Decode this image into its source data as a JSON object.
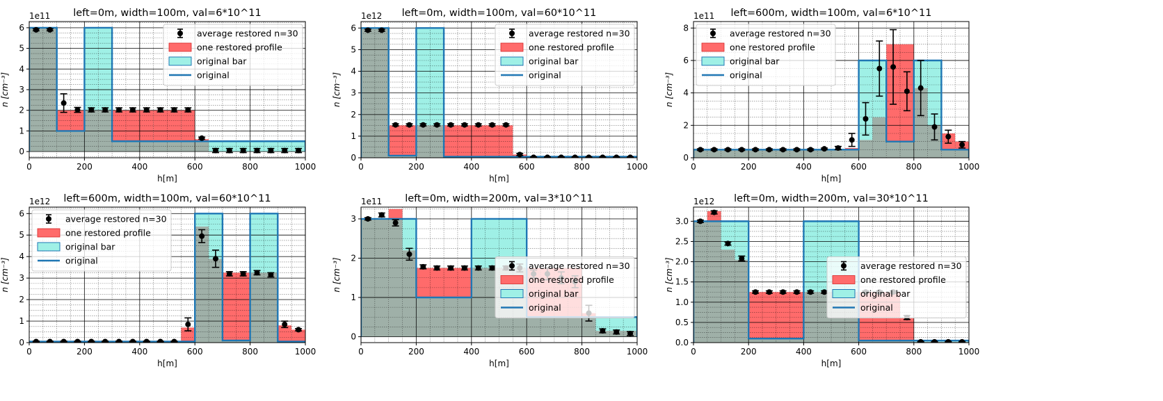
{
  "x_axis_label": "h[m]",
  "y_axis_label": "n [cm⁻³]",
  "legend_labels": [
    "average restored n=30",
    "one restored profile",
    "original bar",
    "original"
  ],
  "colors": {
    "restored": "#ff6b6b",
    "original_bar": "#9ff0e6",
    "original_line": "#1f77b4",
    "error_points": "#000000",
    "overlap": "#9fb0a8"
  },
  "chart_data": [
    {
      "type": "bar",
      "title": "left=0m, width=100m, val=6*10^11",
      "scale_label": "1e11",
      "xlabel": "h[m]",
      "ylabel": "n [cm⁻³]",
      "xlim": [
        0,
        1000
      ],
      "ylim": [
        -0.3,
        6.3
      ],
      "xticks": [
        0,
        200,
        400,
        600,
        800,
        1000
      ],
      "yticks": [
        0,
        1,
        2,
        3,
        4,
        5,
        6
      ],
      "legend_position": "upper-right",
      "original_edges": [
        0,
        100,
        200,
        300,
        1000
      ],
      "original_values": [
        6,
        1,
        6,
        0.5
      ],
      "restored_edges": [
        0,
        100,
        150,
        200,
        250,
        300,
        350,
        400,
        450,
        500,
        550,
        600,
        650,
        1000
      ],
      "restored_values": [
        6,
        2,
        2,
        2,
        2,
        2,
        2,
        2,
        2,
        2,
        2,
        0.6,
        0
      ],
      "points_x": [
        25,
        75,
        125,
        175,
        225,
        275,
        325,
        375,
        425,
        475,
        525,
        575,
        625,
        675,
        725,
        775,
        825,
        875,
        925,
        975
      ],
      "points_y": [
        5.9,
        5.9,
        2.35,
        2.02,
        2.02,
        2.02,
        2.02,
        2.02,
        2.02,
        2.02,
        2.02,
        2.02,
        0.65,
        0.05,
        0.05,
        0.05,
        0.05,
        0.05,
        0.05,
        0.05
      ],
      "points_err": [
        0.05,
        0.05,
        0.45,
        0.12,
        0.1,
        0.1,
        0.1,
        0.1,
        0.1,
        0.1,
        0.1,
        0.1,
        0.05,
        0.1,
        0.1,
        0.1,
        0.1,
        0.1,
        0.1,
        0.1
      ]
    },
    {
      "type": "bar",
      "title": "left=0m, width=100m, val=60*10^11",
      "scale_label": "1e12",
      "xlabel": "h[m]",
      "ylabel": "n [cm⁻³]",
      "xlim": [
        0,
        1000
      ],
      "ylim": [
        0,
        6.3
      ],
      "xticks": [
        0,
        200,
        400,
        600,
        800,
        1000
      ],
      "yticks": [
        0,
        1,
        2,
        3,
        4,
        5,
        6
      ],
      "legend_position": "upper-right",
      "original_edges": [
        0,
        100,
        200,
        300,
        1000
      ],
      "original_values": [
        6,
        0.1,
        6,
        0.05
      ],
      "restored_edges": [
        0,
        100,
        550,
        600,
        1000
      ],
      "restored_values": [
        6,
        1.5,
        0.15,
        0.05
      ],
      "points_x": [
        25,
        75,
        125,
        175,
        225,
        275,
        325,
        375,
        425,
        475,
        525,
        575,
        625,
        675,
        725,
        775,
        825,
        875,
        925,
        975
      ],
      "points_y": [
        5.9,
        5.9,
        1.52,
        1.52,
        1.52,
        1.52,
        1.52,
        1.52,
        1.52,
        1.52,
        1.52,
        0.15,
        0.02,
        0.02,
        0.02,
        0.02,
        0.02,
        0.02,
        0.02,
        0.02
      ],
      "points_err": [
        0.05,
        0.05,
        0.05,
        0.05,
        0.05,
        0.05,
        0.05,
        0.05,
        0.05,
        0.05,
        0.05,
        0.05,
        0.02,
        0.02,
        0.02,
        0.02,
        0.02,
        0.02,
        0.02,
        0.02
      ]
    },
    {
      "type": "bar",
      "title": "left=600m, width=100m, val=6*10^11",
      "scale_label": "1e11",
      "xlabel": "h[m]",
      "ylabel": "n [cm⁻³]",
      "xlim": [
        0,
        1000
      ],
      "ylim": [
        0,
        8.4
      ],
      "xticks": [
        0,
        200,
        400,
        600,
        800,
        1000
      ],
      "yticks": [
        0,
        2,
        4,
        6,
        8
      ],
      "legend_position": "upper-left",
      "original_edges": [
        0,
        600,
        700,
        800,
        900,
        1000
      ],
      "original_values": [
        0.5,
        6,
        1,
        6,
        0.5
      ],
      "restored_edges": [
        0,
        550,
        600,
        650,
        700,
        800,
        850,
        900,
        950,
        1000
      ],
      "restored_values": [
        0.5,
        0.6,
        1.1,
        2.5,
        7,
        4.3,
        2,
        1.5,
        1
      ],
      "points_x": [
        25,
        75,
        125,
        175,
        225,
        275,
        325,
        375,
        425,
        475,
        525,
        575,
        625,
        675,
        725,
        775,
        825,
        875,
        925,
        975
      ],
      "points_y": [
        0.5,
        0.5,
        0.5,
        0.5,
        0.5,
        0.5,
        0.5,
        0.5,
        0.5,
        0.55,
        0.6,
        1.1,
        2.4,
        5.5,
        5.6,
        4.1,
        4.3,
        1.9,
        1.3,
        0.8
      ],
      "points_err": [
        0.05,
        0.05,
        0.05,
        0.05,
        0.05,
        0.05,
        0.05,
        0.05,
        0.05,
        0.05,
        0.1,
        0.4,
        1.0,
        1.7,
        2.3,
        1.2,
        1.7,
        0.8,
        0.4,
        0.2
      ]
    },
    {
      "type": "bar",
      "title": "left=600m, width=100m, val=60*10^11",
      "scale_label": "1e12",
      "xlabel": "h[m]",
      "ylabel": "n [cm⁻³]",
      "xlim": [
        0,
        1000
      ],
      "ylim": [
        0,
        6.3
      ],
      "xticks": [
        0,
        200,
        400,
        600,
        800,
        1000
      ],
      "yticks": [
        0,
        1,
        2,
        3,
        4,
        5,
        6
      ],
      "legend_position": "upper-left",
      "original_edges": [
        0,
        600,
        700,
        800,
        900,
        1000
      ],
      "original_values": [
        0.05,
        6,
        0.1,
        6,
        0.05
      ],
      "restored_edges": [
        0,
        550,
        600,
        650,
        700,
        800,
        900,
        950,
        1000
      ],
      "restored_values": [
        0.05,
        0.7,
        5.4,
        3.9,
        3.25,
        3.25,
        0.8,
        0.6
      ],
      "points_x": [
        25,
        75,
        125,
        175,
        225,
        275,
        325,
        375,
        425,
        475,
        525,
        575,
        625,
        675,
        725,
        775,
        825,
        875,
        925,
        975
      ],
      "points_y": [
        0.05,
        0.05,
        0.05,
        0.05,
        0.05,
        0.05,
        0.05,
        0.05,
        0.05,
        0.05,
        0.05,
        0.85,
        4.95,
        3.9,
        3.2,
        3.2,
        3.25,
        3.15,
        0.85,
        0.6
      ],
      "points_err": [
        0.02,
        0.02,
        0.02,
        0.02,
        0.02,
        0.02,
        0.02,
        0.02,
        0.02,
        0.02,
        0.02,
        0.3,
        0.3,
        0.4,
        0.1,
        0.1,
        0.1,
        0.1,
        0.15,
        0.05
      ]
    },
    {
      "type": "bar",
      "title": "left=0m, width=200m, val=3*10^11",
      "scale_label": "1e11",
      "xlabel": "h[m]",
      "ylabel": "n [cm⁻³]",
      "xlim": [
        0,
        1000
      ],
      "ylim": [
        -0.15,
        3.3
      ],
      "xticks": [
        0,
        200,
        400,
        600,
        800,
        1000
      ],
      "yticks": [
        0,
        1,
        2,
        3
      ],
      "legend_position": "center-right",
      "original_edges": [
        0,
        200,
        400,
        600,
        1000
      ],
      "original_values": [
        3,
        1,
        3,
        0.5
      ],
      "restored_edges": [
        0,
        100,
        150,
        200,
        600,
        800,
        850,
        1000
      ],
      "restored_values": [
        3,
        3.25,
        2.2,
        1.75,
        1.75,
        0.6,
        0.15
      ],
      "points_x": [
        25,
        75,
        125,
        175,
        225,
        275,
        325,
        375,
        425,
        475,
        525,
        575,
        625,
        675,
        725,
        775,
        825,
        875,
        925,
        975
      ],
      "points_y": [
        3.0,
        3.1,
        2.9,
        2.1,
        1.78,
        1.75,
        1.75,
        1.75,
        1.75,
        1.75,
        1.75,
        1.75,
        1.6,
        1.6,
        1.5,
        1.4,
        0.6,
        0.15,
        0.12,
        0.08
      ],
      "points_err": [
        0.03,
        0.05,
        0.08,
        0.15,
        0.05,
        0.05,
        0.05,
        0.05,
        0.05,
        0.05,
        0.05,
        0.1,
        0.1,
        0.15,
        0.15,
        0.15,
        0.2,
        0.05,
        0.05,
        0.05
      ]
    },
    {
      "type": "bar",
      "title": "left=0m, width=200m, val=30*10^11",
      "scale_label": "1e12",
      "xlabel": "h[m]",
      "ylabel": "n [cm⁻³]",
      "xlim": [
        0,
        1000
      ],
      "ylim": [
        0,
        3.35
      ],
      "xticks": [
        0,
        200,
        400,
        600,
        800,
        1000
      ],
      "yticks": [
        0.0,
        0.5,
        1.0,
        1.5,
        2.0,
        2.5,
        3.0
      ],
      "legend_position": "center-right",
      "original_edges": [
        0,
        200,
        400,
        600,
        1000
      ],
      "original_values": [
        3,
        0.1,
        3,
        0.05
      ],
      "restored_edges": [
        0,
        50,
        100,
        150,
        200,
        600,
        750,
        800,
        1000
      ],
      "restored_values": [
        3,
        3.25,
        2.3,
        2.05,
        1.25,
        1.25,
        0.6,
        0.02
      ],
      "points_x": [
        25,
        75,
        125,
        175,
        225,
        275,
        325,
        375,
        425,
        475,
        525,
        575,
        625,
        675,
        725,
        775,
        825,
        875,
        925,
        975
      ],
      "points_y": [
        3.0,
        3.22,
        2.45,
        2.08,
        1.25,
        1.25,
        1.25,
        1.25,
        1.25,
        1.25,
        1.25,
        1.25,
        1.25,
        1.25,
        1.25,
        0.62,
        0.02,
        0.02,
        0.02,
        0.02
      ],
      "points_err": [
        0.03,
        0.04,
        0.04,
        0.06,
        0.03,
        0.03,
        0.03,
        0.03,
        0.03,
        0.03,
        0.03,
        0.03,
        0.03,
        0.03,
        0.03,
        0.05,
        0.01,
        0.01,
        0.01,
        0.01
      ]
    }
  ]
}
